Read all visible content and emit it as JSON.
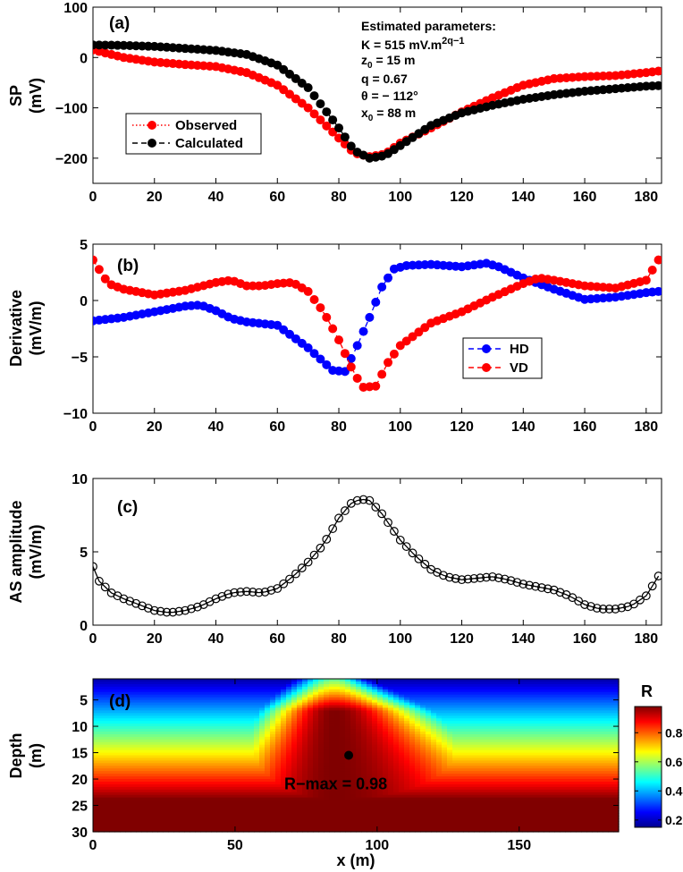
{
  "chart_data": [
    {
      "id": "a",
      "type": "line",
      "panel_label": "(a)",
      "xlabel": "",
      "ylabel": [
        "SP",
        "(mV)"
      ],
      "xlim": [
        0,
        185
      ],
      "ylim": [
        -250,
        100
      ],
      "xticks": [
        "0",
        "20",
        "40",
        "60",
        "80",
        "100",
        "120",
        "140",
        "160",
        "180"
      ],
      "yticks": [
        "100",
        "0",
        "−100",
        "−200"
      ],
      "info_title": "Estimated parameters:",
      "params": {
        "K_prefix": "K = 515 mV.m",
        "K_exp": "2q−1",
        "z0_main": "z",
        "z0_sub": "0",
        "z0_rest": " = 15 m",
        "q": "q = 0.67",
        "theta": "θ = − 112°",
        "x0_main": "x",
        "x0_sub": "0",
        "x0_rest": " = 88 m"
      },
      "series": [
        {
          "name": "Observed",
          "color": "#ff0000",
          "style": "dotted",
          "points": [
            [
              0,
              15
            ],
            [
              10,
              0
            ],
            [
              20,
              -9
            ],
            [
              30,
              -14
            ],
            [
              40,
              -18
            ],
            [
              50,
              -30
            ],
            [
              60,
              -55
            ],
            [
              70,
              -100
            ],
            [
              80,
              -160
            ],
            [
              85,
              -190
            ],
            [
              90,
              -197
            ],
            [
              95,
              -192
            ],
            [
              100,
              -170
            ],
            [
              110,
              -140
            ],
            [
              120,
              -108
            ],
            [
              130,
              -80
            ],
            [
              140,
              -55
            ],
            [
              150,
              -42
            ],
            [
              160,
              -38
            ],
            [
              170,
              -36
            ],
            [
              180,
              -30
            ],
            [
              184,
              -27
            ]
          ]
        },
        {
          "name": "Calculated",
          "color": "#000000",
          "style": "dashed",
          "points": [
            [
              0,
              25
            ],
            [
              10,
              24
            ],
            [
              20,
              22
            ],
            [
              30,
              18
            ],
            [
              40,
              14
            ],
            [
              50,
              6
            ],
            [
              60,
              -15
            ],
            [
              70,
              -60
            ],
            [
              80,
              -140
            ],
            [
              85,
              -185
            ],
            [
              90,
              -200
            ],
            [
              95,
              -195
            ],
            [
              100,
              -175
            ],
            [
              110,
              -135
            ],
            [
              120,
              -110
            ],
            [
              130,
              -95
            ],
            [
              140,
              -83
            ],
            [
              150,
              -74
            ],
            [
              160,
              -67
            ],
            [
              170,
              -62
            ],
            [
              180,
              -57
            ],
            [
              184,
              -56
            ]
          ]
        }
      ],
      "legend": [
        "Observed",
        "Calculated"
      ]
    },
    {
      "id": "b",
      "type": "line",
      "panel_label": "(b)",
      "ylabel": [
        "Derivative",
        "(mV/m)"
      ],
      "xlim": [
        0,
        185
      ],
      "ylim": [
        -10,
        5
      ],
      "xticks": [
        "0",
        "20",
        "40",
        "60",
        "80",
        "100",
        "120",
        "140",
        "160",
        "180"
      ],
      "yticks": [
        "5",
        "0",
        "−5",
        "−10"
      ],
      "series": [
        {
          "name": "HD",
          "color": "#0000ff",
          "style": "dashed",
          "points": [
            [
              0,
              -1.8
            ],
            [
              10,
              -1.5
            ],
            [
              20,
              -1
            ],
            [
              30,
              -0.5
            ],
            [
              35,
              -0.4
            ],
            [
              40,
              -0.9
            ],
            [
              45,
              -1.6
            ],
            [
              50,
              -1.9
            ],
            [
              60,
              -2.2
            ],
            [
              70,
              -4.2
            ],
            [
              78,
              -6.2
            ],
            [
              82,
              -6.3
            ],
            [
              86,
              -4
            ],
            [
              90,
              -1.5
            ],
            [
              94,
              1.2
            ],
            [
              98,
              2.8
            ],
            [
              102,
              3.1
            ],
            [
              110,
              3.2
            ],
            [
              120,
              3
            ],
            [
              128,
              3.3
            ],
            [
              132,
              3
            ],
            [
              140,
              2
            ],
            [
              150,
              1
            ],
            [
              160,
              0.1
            ],
            [
              170,
              0.3
            ],
            [
              180,
              0.7
            ],
            [
              184,
              0.8
            ]
          ]
        },
        {
          "name": "VD",
          "color": "#ff0000",
          "style": "dashed",
          "points": [
            [
              0,
              3.6
            ],
            [
              5,
              1.5
            ],
            [
              10,
              1
            ],
            [
              20,
              0.5
            ],
            [
              30,
              0.9
            ],
            [
              40,
              1.6
            ],
            [
              45,
              1.8
            ],
            [
              50,
              1.3
            ],
            [
              55,
              1.3
            ],
            [
              60,
              1.5
            ],
            [
              65,
              1.6
            ],
            [
              70,
              0.8
            ],
            [
              75,
              -1
            ],
            [
              80,
              -3.5
            ],
            [
              85,
              -6.5
            ],
            [
              88,
              -7.7
            ],
            [
              92,
              -7.6
            ],
            [
              96,
              -5.5
            ],
            [
              100,
              -4
            ],
            [
              110,
              -2
            ],
            [
              120,
              -1
            ],
            [
              130,
              0.3
            ],
            [
              140,
              1.5
            ],
            [
              145,
              2
            ],
            [
              150,
              1.8
            ],
            [
              160,
              1.3
            ],
            [
              170,
              1.1
            ],
            [
              180,
              1.8
            ],
            [
              184,
              3.6
            ]
          ]
        }
      ],
      "legend": [
        "HD",
        "VD"
      ]
    },
    {
      "id": "c",
      "type": "line",
      "panel_label": "(c)",
      "ylabel": [
        "AS amplitude",
        "(mV/m)"
      ],
      "xlim": [
        0,
        185
      ],
      "ylim": [
        0,
        10
      ],
      "xticks": [
        "0",
        "20",
        "40",
        "60",
        "80",
        "100",
        "120",
        "140",
        "160",
        "180"
      ],
      "yticks": [
        "10",
        "5",
        "0"
      ],
      "series": [
        {
          "name": "AS amplitude",
          "color": "#000000",
          "style": "solid",
          "points": [
            [
              0,
              4
            ],
            [
              2,
              3
            ],
            [
              6,
              2.2
            ],
            [
              10,
              1.8
            ],
            [
              15,
              1.4
            ],
            [
              20,
              1
            ],
            [
              25,
              0.85
            ],
            [
              30,
              1
            ],
            [
              35,
              1.3
            ],
            [
              40,
              1.8
            ],
            [
              45,
              2.2
            ],
            [
              50,
              2.3
            ],
            [
              55,
              2.2
            ],
            [
              60,
              2.5
            ],
            [
              65,
              3.3
            ],
            [
              70,
              4.3
            ],
            [
              75,
              5.5
            ],
            [
              80,
              7.3
            ],
            [
              84,
              8.3
            ],
            [
              87,
              8.6
            ],
            [
              90,
              8.5
            ],
            [
              94,
              7.6
            ],
            [
              100,
              5.8
            ],
            [
              105,
              4.7
            ],
            [
              110,
              3.8
            ],
            [
              115,
              3.3
            ],
            [
              120,
              3.1
            ],
            [
              125,
              3.2
            ],
            [
              130,
              3.3
            ],
            [
              135,
              3.1
            ],
            [
              140,
              2.8
            ],
            [
              145,
              2.6
            ],
            [
              150,
              2.4
            ],
            [
              155,
              2
            ],
            [
              160,
              1.4
            ],
            [
              165,
              1.1
            ],
            [
              170,
              1.1
            ],
            [
              175,
              1.3
            ],
            [
              180,
              2
            ],
            [
              183,
              3
            ],
            [
              185,
              3.7
            ]
          ]
        }
      ]
    },
    {
      "id": "d",
      "type": "heatmap",
      "panel_label": "(d)",
      "xlabel": "x (m)",
      "ylabel": [
        "Depth",
        "(m)"
      ],
      "xlim": [
        0,
        185
      ],
      "ylim": [
        30,
        1
      ],
      "xticks": [
        "0",
        "50",
        "100",
        "150"
      ],
      "yticks": [
        "5",
        "10",
        "15",
        "20",
        "25",
        "30"
      ],
      "max_point": [
        90,
        15.5
      ],
      "annotation": "R−max = 0.98",
      "colorbar": {
        "label": "R",
        "ticks": [
          "0.8",
          "0.6",
          "0.4",
          "0.2"
        ],
        "range": [
          0.15,
          0.98
        ]
      }
    }
  ]
}
